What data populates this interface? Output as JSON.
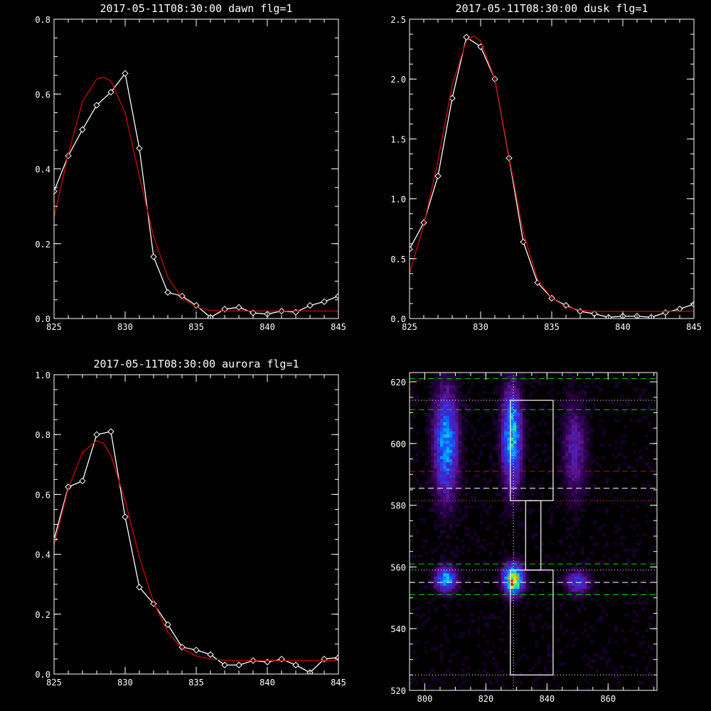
{
  "chart_data": [
    {
      "type": "line",
      "title": "2017-05-11T08:30:00 dawn flg=1",
      "xlim": [
        825,
        845
      ],
      "ylim": [
        0,
        0.8
      ],
      "xticks": [
        "825",
        "830",
        "835",
        "840",
        "845"
      ],
      "yticks": [
        "0.0",
        "0.2",
        "0.4",
        "0.6",
        "0.8"
      ],
      "xtick_vals": [
        825,
        830,
        835,
        840,
        845
      ],
      "ytick_vals": [
        0,
        0.2,
        0.4,
        0.6,
        0.8
      ],
      "series": [
        {
          "color": "#ffffff",
          "markers": true,
          "x": [
            825,
            826,
            827,
            828,
            829,
            830,
            831,
            832,
            833,
            834,
            835,
            836,
            837,
            838,
            839,
            840,
            841,
            842,
            843,
            844,
            845
          ],
          "y": [
            0.34,
            0.435,
            0.505,
            0.57,
            0.605,
            0.655,
            0.455,
            0.165,
            0.07,
            0.06,
            0.035,
            0.003,
            0.025,
            0.03,
            0.015,
            0.012,
            0.02,
            0.017,
            0.035,
            0.045,
            0.06
          ]
        },
        {
          "color": "#cc0000",
          "markers": false,
          "x": [
            825,
            826,
            827,
            828,
            828.5,
            829,
            830,
            831,
            832,
            833,
            834,
            835,
            836,
            837,
            838,
            839,
            840,
            842,
            845
          ],
          "y": [
            0.27,
            0.44,
            0.58,
            0.64,
            0.645,
            0.635,
            0.55,
            0.38,
            0.22,
            0.11,
            0.055,
            0.03,
            0.022,
            0.02,
            0.02,
            0.02,
            0.02,
            0.02,
            0.02
          ]
        }
      ]
    },
    {
      "type": "line",
      "title": "2017-05-11T08:30:00 dusk flg=1",
      "xlim": [
        825,
        845
      ],
      "ylim": [
        0,
        2.5
      ],
      "xticks": [
        "825",
        "830",
        "835",
        "840",
        "845"
      ],
      "yticks": [
        "0.0",
        "0.5",
        "1.0",
        "1.5",
        "2.0",
        "2.5"
      ],
      "xtick_vals": [
        825,
        830,
        835,
        840,
        845
      ],
      "ytick_vals": [
        0,
        0.5,
        1.0,
        1.5,
        2.0,
        2.5
      ],
      "series": [
        {
          "color": "#ffffff",
          "markers": true,
          "x": [
            825,
            826,
            827,
            828,
            829,
            830,
            831,
            832,
            833,
            834,
            835,
            836,
            837,
            838,
            839,
            840,
            841,
            842,
            843,
            844,
            845
          ],
          "y": [
            0.58,
            0.8,
            1.19,
            1.84,
            2.35,
            2.27,
            2.0,
            1.34,
            0.64,
            0.3,
            0.17,
            0.11,
            0.06,
            0.04,
            0.01,
            0.02,
            0.02,
            0.01,
            0.05,
            0.08,
            0.12
          ]
        },
        {
          "color": "#cc0000",
          "markers": false,
          "x": [
            825,
            826,
            827,
            828,
            829,
            829.5,
            830,
            831,
            832,
            833,
            834,
            835,
            836,
            837,
            838,
            839,
            840,
            842,
            845
          ],
          "y": [
            0.38,
            0.78,
            1.32,
            1.95,
            2.32,
            2.36,
            2.32,
            2.0,
            1.35,
            0.72,
            0.33,
            0.17,
            0.1,
            0.07,
            0.06,
            0.06,
            0.06,
            0.06,
            0.06
          ]
        }
      ]
    },
    {
      "type": "line",
      "title": "2017-05-11T08:30:00 aurora flg=1",
      "xlim": [
        825,
        845
      ],
      "ylim": [
        0,
        1.0
      ],
      "xticks": [
        "825",
        "830",
        "835",
        "840",
        "845"
      ],
      "yticks": [
        "0.0",
        "0.2",
        "0.4",
        "0.6",
        "0.8",
        "1.0"
      ],
      "xtick_vals": [
        825,
        830,
        835,
        840,
        845
      ],
      "ytick_vals": [
        0,
        0.2,
        0.4,
        0.6,
        0.8,
        1.0
      ],
      "series": [
        {
          "color": "#ffffff",
          "markers": true,
          "x": [
            825,
            826,
            827,
            828,
            829,
            830,
            831,
            832,
            833,
            834,
            835,
            836,
            837,
            838,
            839,
            840,
            841,
            842,
            843,
            844,
            845
          ],
          "y": [
            0.45,
            0.625,
            0.645,
            0.8,
            0.81,
            0.525,
            0.29,
            0.235,
            0.165,
            0.09,
            0.08,
            0.065,
            0.03,
            0.03,
            0.045,
            0.04,
            0.05,
            0.03,
            0.005,
            0.05,
            0.055
          ]
        },
        {
          "color": "#cc0000",
          "markers": false,
          "x": [
            825,
            826,
            827,
            828,
            828.5,
            829,
            830,
            831,
            832,
            833,
            834,
            835,
            836,
            837,
            838,
            840,
            842,
            845
          ],
          "y": [
            0.43,
            0.62,
            0.74,
            0.78,
            0.77,
            0.73,
            0.58,
            0.39,
            0.24,
            0.14,
            0.085,
            0.06,
            0.05,
            0.046,
            0.045,
            0.045,
            0.045,
            0.045
          ]
        }
      ]
    },
    {
      "type": "heatmap",
      "xlim": [
        795,
        876
      ],
      "ylim": [
        520,
        623
      ],
      "xticks": [
        "800",
        "820",
        "840",
        "860"
      ],
      "yticks": [
        "520",
        "540",
        "560",
        "580",
        "600",
        "620"
      ],
      "xtick_vals": [
        800,
        820,
        840,
        860
      ],
      "ytick_vals": [
        520,
        540,
        560,
        580,
        600,
        620
      ],
      "blobs": [
        {
          "x": 807,
          "y": 600,
          "sx": 2.5,
          "sy": 11,
          "amp": 0.5
        },
        {
          "x": 828.5,
          "y": 602,
          "sx": 2.0,
          "sy": 10,
          "amp": 0.6
        },
        {
          "x": 849,
          "y": 598,
          "sx": 2.5,
          "sy": 10,
          "amp": 0.2
        },
        {
          "x": 807,
          "y": 556,
          "sx": 2.2,
          "sy": 2.6,
          "amp": 0.55
        },
        {
          "x": 829,
          "y": 556,
          "sx": 2.0,
          "sy": 3.0,
          "amp": 1.0
        },
        {
          "x": 850,
          "y": 555,
          "sx": 2.5,
          "sy": 2.5,
          "amp": 0.3
        }
      ],
      "hlines": [
        {
          "y": 621,
          "color": "#00cc00",
          "style": "dash"
        },
        {
          "y": 611,
          "color": "#00cc00",
          "style": "dash"
        },
        {
          "y": 614,
          "color": "#ffffff",
          "style": "dot"
        },
        {
          "y": 591,
          "color": "#cc0000",
          "style": "dash"
        },
        {
          "y": 585.5,
          "color": "#ffffff",
          "style": "dash"
        },
        {
          "y": 581.5,
          "color": "#ff4444",
          "style": "dot"
        },
        {
          "y": 561,
          "color": "#00cc00",
          "style": "dash"
        },
        {
          "y": 559,
          "color": "#ffffff",
          "style": "dot"
        },
        {
          "y": 555,
          "color": "#ffffff",
          "style": "dash"
        },
        {
          "y": 551,
          "color": "#00cc00",
          "style": "dash"
        },
        {
          "y": 525,
          "color": "#ffffff",
          "style": "dot"
        }
      ],
      "vlines": [
        {
          "x": 829,
          "color": "#ffffff",
          "style": "dot"
        }
      ],
      "boxes": [
        {
          "x0": 828,
          "x1": 842,
          "y0": 581.5,
          "y1": 614
        },
        {
          "x0": 833,
          "x1": 838,
          "y0": 559,
          "y1": 581.5
        },
        {
          "x0": 828,
          "x1": 842,
          "y0": 525,
          "y1": 559
        }
      ]
    }
  ]
}
